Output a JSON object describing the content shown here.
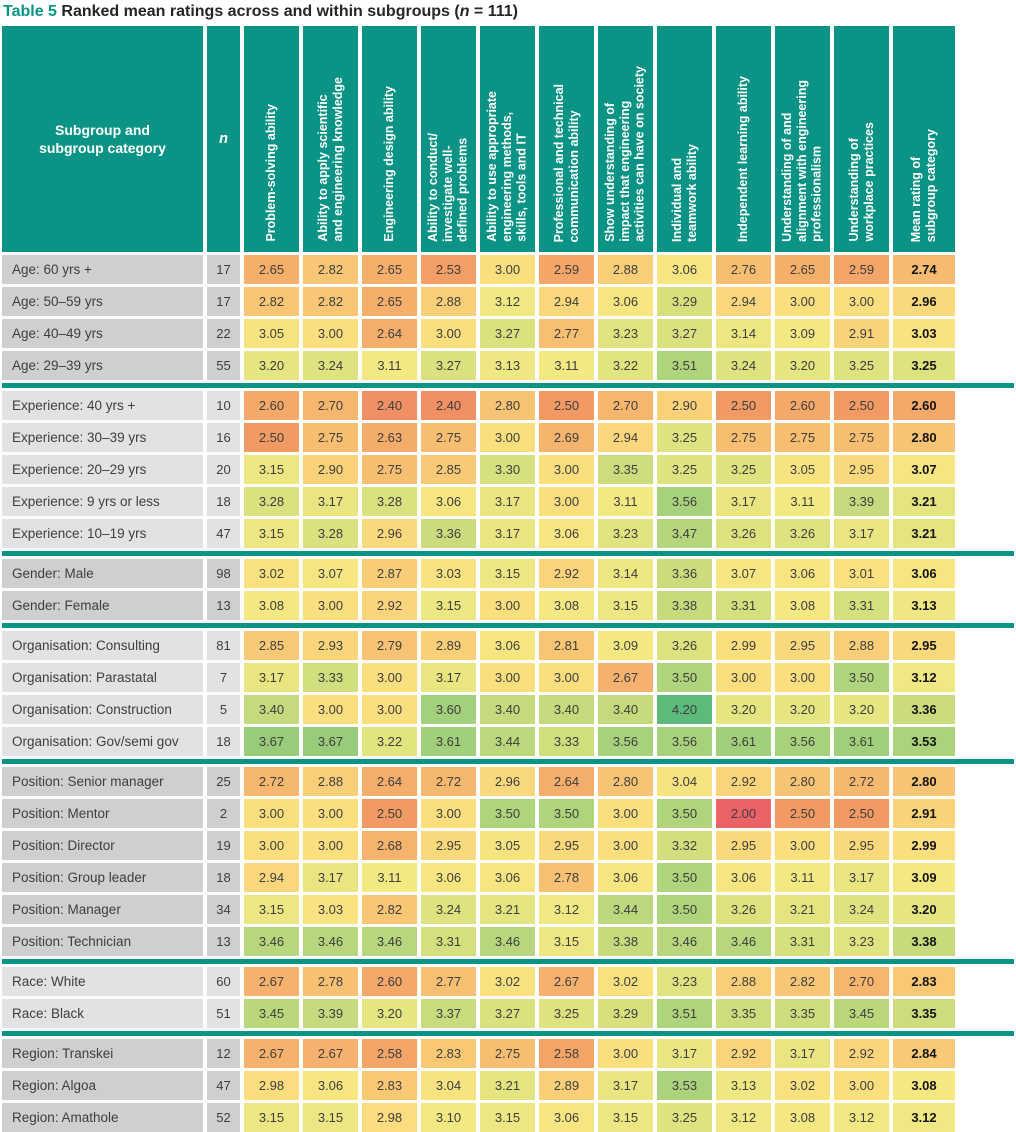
{
  "title": {
    "label": "Table 5",
    "main": " Ranked mean ratings across and within subgroups (",
    "n_var": "n",
    "tail": " = 111)"
  },
  "columns": {
    "subgroup": "Subgroup and\nsubgroup category",
    "n": "n",
    "skills": [
      "Problem-solving ability",
      "Ability to apply scientific\nand engineering knowledge",
      "Engineering design ability",
      "Ability to conduct/\ninvestigate well-\ndefined problems",
      "Ability to use appropriate\nengineering methods,\nskills, tools and IT",
      "Professional and technical\ncommunication ability",
      "Show understanding of\nimpact that engineering\nactivities can have on society",
      "Individual and\nteamwork ability",
      "Independent learning ability",
      "Understanding of and\nalignment with engineering\nprofessionalism",
      "Understanding of\nworkplace practices"
    ],
    "mean": "Mean rating of\nsubgroup category"
  },
  "groups": [
    {
      "name": "Age",
      "shade": "dark",
      "rows": [
        {
          "label": "Age: 60 yrs +",
          "n": "17",
          "values": [
            2.65,
            2.82,
            2.65,
            2.53,
            3.0,
            2.59,
            2.88,
            3.06,
            2.76,
            2.65,
            2.59
          ],
          "mean": 2.74
        },
        {
          "label": "Age: 50–59 yrs",
          "n": "17",
          "values": [
            2.82,
            2.82,
            2.65,
            2.88,
            3.12,
            2.94,
            3.06,
            3.29,
            2.94,
            3.0,
            3.0
          ],
          "mean": 2.96
        },
        {
          "label": "Age: 40–49 yrs",
          "n": "22",
          "values": [
            3.05,
            3.0,
            2.64,
            3.0,
            3.27,
            2.77,
            3.23,
            3.27,
            3.14,
            3.09,
            2.91
          ],
          "mean": 3.03
        },
        {
          "label": "Age: 29–39 yrs",
          "n": "55",
          "values": [
            3.2,
            3.24,
            3.11,
            3.27,
            3.13,
            3.11,
            3.22,
            3.51,
            3.24,
            3.2,
            3.25
          ],
          "mean": 3.25
        }
      ]
    },
    {
      "name": "Experience",
      "shade": "light",
      "rows": [
        {
          "label": "Experience: 40 yrs +",
          "n": "10",
          "values": [
            2.6,
            2.7,
            2.4,
            2.4,
            2.8,
            2.5,
            2.7,
            2.9,
            2.5,
            2.6,
            2.5
          ],
          "mean": 2.6
        },
        {
          "label": "Experience: 30–39 yrs",
          "n": "16",
          "values": [
            2.5,
            2.75,
            2.63,
            2.75,
            3.0,
            2.69,
            2.94,
            3.25,
            2.75,
            2.75,
            2.75
          ],
          "mean": 2.8
        },
        {
          "label": "Experience: 20–29 yrs",
          "n": "20",
          "values": [
            3.15,
            2.9,
            2.75,
            2.85,
            3.3,
            3.0,
            3.35,
            3.25,
            3.25,
            3.05,
            2.95
          ],
          "mean": 3.07
        },
        {
          "label": "Experience: 9 yrs or less",
          "n": "18",
          "values": [
            3.28,
            3.17,
            3.28,
            3.06,
            3.17,
            3.0,
            3.11,
            3.56,
            3.17,
            3.11,
            3.39
          ],
          "mean": 3.21
        },
        {
          "label": "Experience: 10–19 yrs",
          "n": "47",
          "values": [
            3.15,
            3.28,
            2.96,
            3.36,
            3.17,
            3.06,
            3.23,
            3.47,
            3.26,
            3.26,
            3.17
          ],
          "mean": 3.21
        }
      ]
    },
    {
      "name": "Gender",
      "shade": "dark",
      "rows": [
        {
          "label": "Gender: Male",
          "n": "98",
          "values": [
            3.02,
            3.07,
            2.87,
            3.03,
            3.15,
            2.92,
            3.14,
            3.36,
            3.07,
            3.06,
            3.01
          ],
          "mean": 3.06
        },
        {
          "label": "Gender: Female",
          "n": "13",
          "values": [
            3.08,
            3.0,
            2.92,
            3.15,
            3.0,
            3.08,
            3.15,
            3.38,
            3.31,
            3.08,
            3.31
          ],
          "mean": 3.13
        }
      ]
    },
    {
      "name": "Organisation",
      "shade": "light",
      "rows": [
        {
          "label": "Organisation: Consulting",
          "n": "81",
          "values": [
            2.85,
            2.93,
            2.79,
            2.89,
            3.06,
            2.81,
            3.09,
            3.26,
            2.99,
            2.95,
            2.88
          ],
          "mean": 2.95
        },
        {
          "label": "Organisation: Parastatal",
          "n": "7",
          "values": [
            3.17,
            3.33,
            3.0,
            3.17,
            3.0,
            3.0,
            2.67,
            3.5,
            3.0,
            3.0,
            3.5
          ],
          "mean": 3.12
        },
        {
          "label": "Organisation: Construction",
          "n": "5",
          "values": [
            3.4,
            3.0,
            3.0,
            3.6,
            3.4,
            3.4,
            3.4,
            4.2,
            3.2,
            3.2,
            3.2
          ],
          "mean": 3.36
        },
        {
          "label": "Organisation: Gov/semi gov",
          "n": "18",
          "values": [
            3.67,
            3.67,
            3.22,
            3.61,
            3.44,
            3.33,
            3.56,
            3.56,
            3.61,
            3.56,
            3.61
          ],
          "mean": 3.53
        }
      ]
    },
    {
      "name": "Position",
      "shade": "dark",
      "rows": [
        {
          "label": "Position: Senior manager",
          "n": "25",
          "values": [
            2.72,
            2.88,
            2.64,
            2.72,
            2.96,
            2.64,
            2.8,
            3.04,
            2.92,
            2.8,
            2.72
          ],
          "mean": 2.8
        },
        {
          "label": "Position: Mentor",
          "n": "2",
          "values": [
            3.0,
            3.0,
            2.5,
            3.0,
            3.5,
            3.5,
            3.0,
            3.5,
            2.0,
            2.5,
            2.5
          ],
          "mean": 2.91
        },
        {
          "label": "Position: Director",
          "n": "19",
          "values": [
            3.0,
            3.0,
            2.68,
            2.95,
            3.05,
            2.95,
            3.0,
            3.32,
            2.95,
            3.0,
            2.95
          ],
          "mean": 2.99
        },
        {
          "label": "Position: Group leader",
          "n": "18",
          "values": [
            2.94,
            3.17,
            3.11,
            3.06,
            3.06,
            2.78,
            3.06,
            3.5,
            3.06,
            3.11,
            3.17
          ],
          "mean": 3.09
        },
        {
          "label": "Position: Manager",
          "n": "34",
          "values": [
            3.15,
            3.03,
            2.82,
            3.24,
            3.21,
            3.12,
            3.44,
            3.5,
            3.26,
            3.21,
            3.24
          ],
          "mean": 3.2
        },
        {
          "label": "Position: Technician",
          "n": "13",
          "values": [
            3.46,
            3.46,
            3.46,
            3.31,
            3.46,
            3.15,
            3.38,
            3.46,
            3.46,
            3.31,
            3.23
          ],
          "mean": 3.38
        }
      ]
    },
    {
      "name": "Race",
      "shade": "light",
      "rows": [
        {
          "label": "Race: White",
          "n": "60",
          "values": [
            2.67,
            2.78,
            2.6,
            2.77,
            3.02,
            2.67,
            3.02,
            3.23,
            2.88,
            2.82,
            2.7
          ],
          "mean": 2.83
        },
        {
          "label": "Race: Black",
          "n": "51",
          "values": [
            3.45,
            3.39,
            3.2,
            3.37,
            3.27,
            3.25,
            3.29,
            3.51,
            3.35,
            3.35,
            3.45
          ],
          "mean": 3.35
        }
      ]
    },
    {
      "name": "Region",
      "shade": "dark",
      "rows": [
        {
          "label": "Region: Transkei",
          "n": "12",
          "values": [
            2.67,
            2.67,
            2.58,
            2.83,
            2.75,
            2.58,
            3.0,
            3.17,
            2.92,
            3.17,
            2.92
          ],
          "mean": 2.84
        },
        {
          "label": "Region: Algoa",
          "n": "47",
          "values": [
            2.98,
            3.06,
            2.83,
            3.04,
            3.21,
            2.89,
            3.17,
            3.53,
            3.13,
            3.02,
            3.0
          ],
          "mean": 3.08
        },
        {
          "label": "Region: Amathole",
          "n": "52",
          "values": [
            3.15,
            3.15,
            2.98,
            3.1,
            3.15,
            3.06,
            3.15,
            3.25,
            3.12,
            3.08,
            3.12
          ],
          "mean": 3.12
        }
      ]
    }
  ],
  "colors": {
    "teal": "#0b9485",
    "row_label_dark": "#cfcfcf",
    "row_label_light": "#e2e2e2",
    "cell_text": "#3e3e3e",
    "mean_text": "#141414",
    "title_text": "#262626"
  },
  "heat_scale": {
    "type": "red-yellow-green",
    "stops": [
      [
        2.0,
        "#ea6166"
      ],
      [
        2.5,
        "#f29a63"
      ],
      [
        3.0,
        "#fbdf7f"
      ],
      [
        3.1,
        "#f3e983"
      ],
      [
        3.3,
        "#d7e07e"
      ],
      [
        3.5,
        "#b0d47b"
      ],
      [
        3.7,
        "#94cb7a"
      ],
      [
        4.2,
        "#5cba7a"
      ]
    ]
  },
  "chart_data": {
    "type": "table",
    "title": "Table 5 Ranked mean ratings across and within subgroups (n = 111)",
    "value_range_shown": [
      2.0,
      4.2
    ],
    "legend_position": "none",
    "notes": "heatmap-colored mean ratings; rows ranked ascending by mean within each subgroup"
  }
}
